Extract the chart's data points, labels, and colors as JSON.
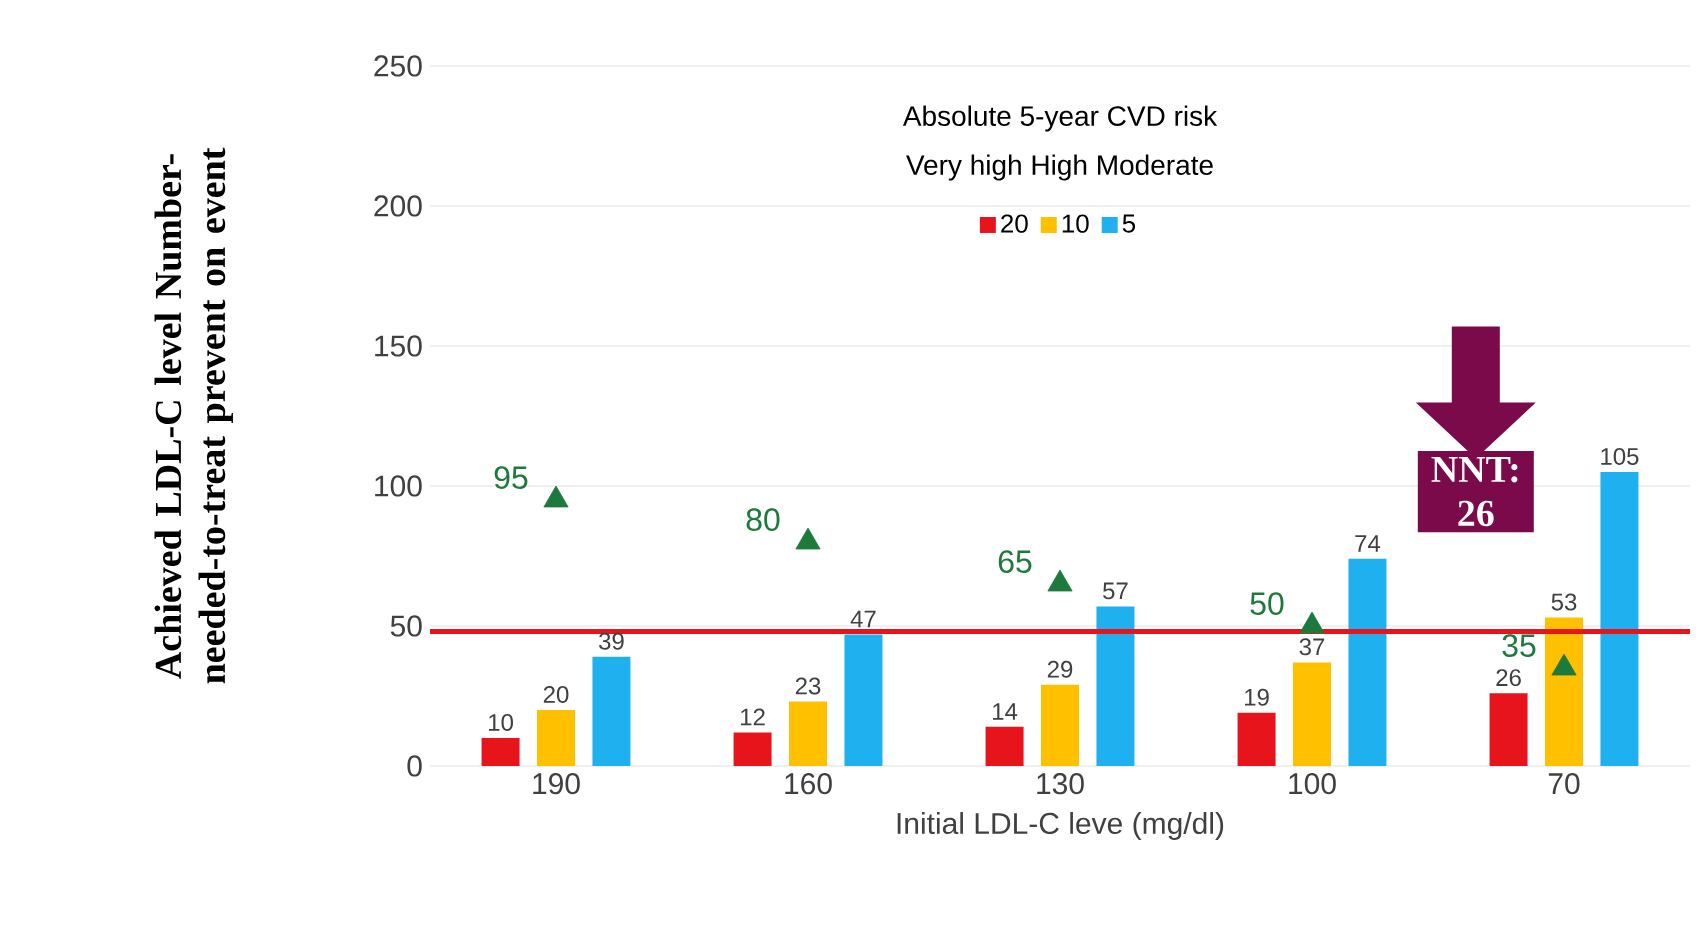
{
  "chart_data": {
    "type": "bar",
    "ylabel": "Achieved LDL-C level Number-needed-to-treat prevent on event",
    "xlabel": "Initial LDL-C leve (mg/dl)",
    "legend_title": "Absolute 5-year CVD risk",
    "categories": [
      "190",
      "160",
      "130",
      "100",
      "70"
    ],
    "series": [
      {
        "name": "20",
        "color": "#e8141c",
        "values": [
          10,
          12,
          14,
          19,
          26
        ]
      },
      {
        "name": "10",
        "color": "#ffc000",
        "values": [
          20,
          23,
          29,
          37,
          53
        ]
      },
      {
        "name": "5",
        "color": "#1fb0f0",
        "values": [
          39,
          47,
          57,
          74,
          105
        ]
      },
      {
        "type": "scatter",
        "color": "#1e7a3c",
        "marker": "triangle",
        "x": [
          "190",
          "160",
          "130",
          "100",
          "70"
        ],
        "values": [
          95,
          80,
          65,
          50,
          35
        ],
        "value_labels": [
          "95",
          "80",
          "65",
          "50",
          "35"
        ]
      }
    ],
    "data_labels": true,
    "ylim": [
      0,
      250
    ],
    "yticks": [
      0,
      50,
      100,
      150,
      200,
      250
    ],
    "grid": "y",
    "legend": "top",
    "ref_lines": [
      {
        "axis": "y",
        "value": 48,
        "color": "#e8141c"
      }
    ],
    "annotations": [
      "Very high  High  Moderate",
      "NNT: 26"
    ]
  }
}
